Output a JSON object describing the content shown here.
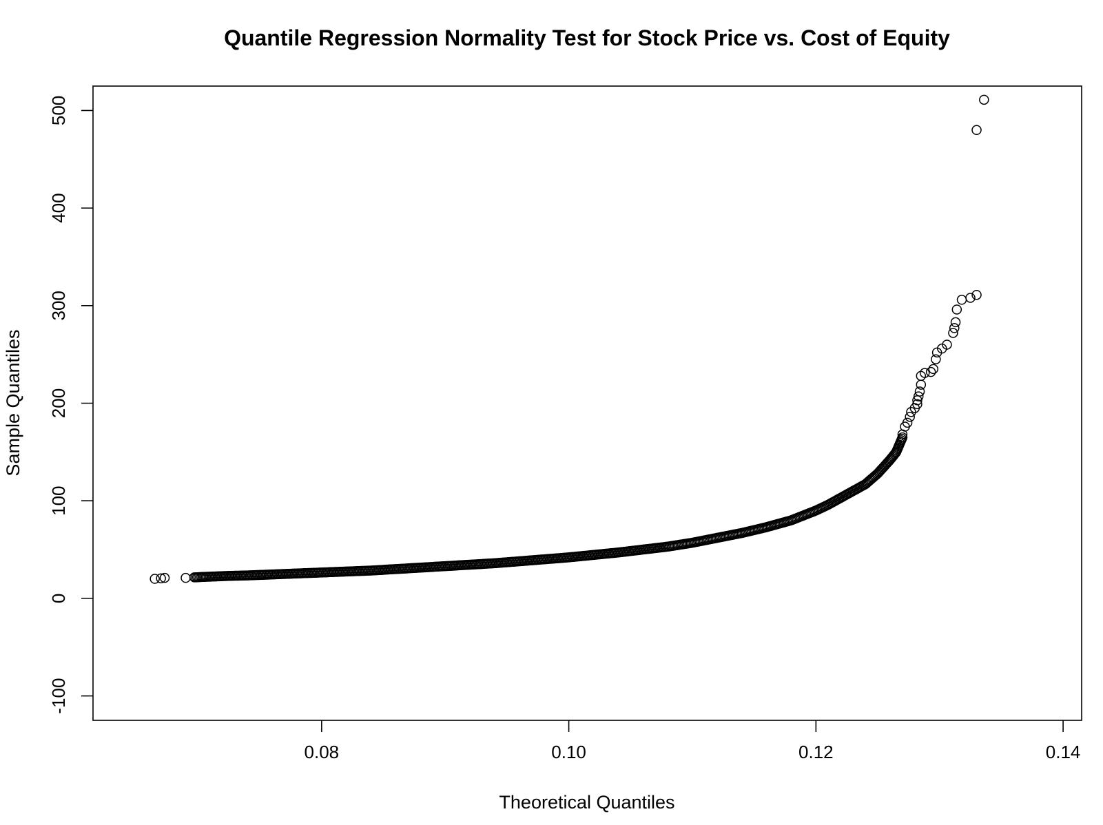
{
  "chart_data": {
    "type": "scatter",
    "title": "Quantile Regression Normality Test for Stock Price vs. Cost of Equity",
    "xlabel": "Theoretical Quantiles",
    "ylabel": "Sample Quantiles",
    "xlim": [
      0.0615,
      0.1415
    ],
    "ylim": [
      -125,
      525
    ],
    "xticks": [
      0.08,
      0.1,
      0.12,
      0.14
    ],
    "xtick_labels": [
      "0.08",
      "0.10",
      "0.12",
      "0.14"
    ],
    "yticks": [
      -100,
      0,
      100,
      200,
      300,
      400,
      500
    ],
    "ytick_labels": [
      "-100",
      "0",
      "100",
      "200",
      "300",
      "400",
      "500"
    ],
    "grid": false,
    "marker": "open-circle",
    "color": "#000000",
    "curve_points": [
      [
        0.0665,
        20
      ],
      [
        0.067,
        20.5
      ],
      [
        0.0673,
        21
      ],
      [
        0.069,
        21
      ],
      [
        0.0697,
        21.5
      ],
      [
        0.0705,
        22
      ],
      [
        0.0715,
        22.5
      ],
      [
        0.0725,
        23
      ],
      [
        0.074,
        23.5
      ],
      [
        0.076,
        24.5
      ],
      [
        0.078,
        25.5
      ],
      [
        0.08,
        26.5
      ],
      [
        0.082,
        27.5
      ],
      [
        0.084,
        28.5
      ],
      [
        0.086,
        30
      ],
      [
        0.088,
        31.5
      ],
      [
        0.09,
        33
      ],
      [
        0.092,
        34.5
      ],
      [
        0.094,
        36
      ],
      [
        0.096,
        38
      ],
      [
        0.098,
        40
      ],
      [
        0.1,
        42
      ],
      [
        0.102,
        44.5
      ],
      [
        0.104,
        47
      ],
      [
        0.106,
        50
      ],
      [
        0.108,
        53
      ],
      [
        0.11,
        57
      ],
      [
        0.112,
        62
      ],
      [
        0.114,
        67
      ],
      [
        0.116,
        73
      ],
      [
        0.118,
        80
      ],
      [
        0.119,
        85
      ],
      [
        0.12,
        90
      ],
      [
        0.121,
        96
      ],
      [
        0.122,
        103
      ],
      [
        0.123,
        110
      ],
      [
        0.124,
        117
      ],
      [
        0.125,
        128
      ],
      [
        0.1255,
        135
      ],
      [
        0.126,
        142
      ],
      [
        0.1265,
        150
      ],
      [
        0.127,
        165
      ]
    ],
    "tail_points": [
      [
        0.127,
        168
      ],
      [
        0.1272,
        176
      ],
      [
        0.1274,
        180
      ],
      [
        0.1276,
        186
      ],
      [
        0.1277,
        191
      ],
      [
        0.128,
        195
      ],
      [
        0.1282,
        199
      ],
      [
        0.1282,
        203
      ],
      [
        0.1283,
        207
      ],
      [
        0.1284,
        212
      ],
      [
        0.1285,
        219
      ],
      [
        0.1285,
        228
      ],
      [
        0.1288,
        231
      ],
      [
        0.1293,
        232
      ],
      [
        0.1295,
        235
      ],
      [
        0.1297,
        245
      ],
      [
        0.1298,
        252
      ],
      [
        0.1302,
        256
      ],
      [
        0.1306,
        260
      ],
      [
        0.1311,
        272
      ],
      [
        0.1312,
        277
      ],
      [
        0.1313,
        283
      ],
      [
        0.1314,
        296
      ],
      [
        0.1318,
        306
      ],
      [
        0.1325,
        308
      ],
      [
        0.133,
        311
      ],
      [
        0.133,
        480
      ],
      [
        0.1336,
        511
      ]
    ]
  }
}
